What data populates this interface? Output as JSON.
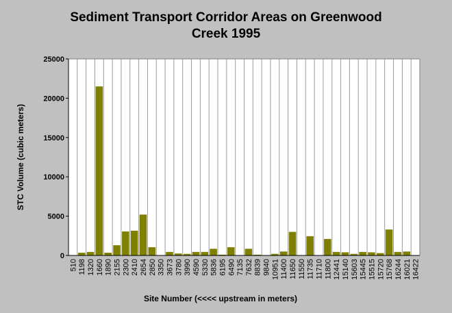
{
  "chart_data": {
    "type": "bar",
    "title_line1": "Sediment Transport Corridor Areas on Greenwood",
    "title_line2": "Creek 1995",
    "xlabel": "Site Number (<<<< upstream in meters)",
    "ylabel": "STC Volume (cubic meters)",
    "ylim": [
      0,
      25000
    ],
    "yticks": [
      0,
      5000,
      10000,
      15000,
      20000,
      25000
    ],
    "grid": "vertical",
    "bar_color": "#808000",
    "categories": [
      "510",
      "1198",
      "1320",
      "1660",
      "1890",
      "2155",
      "2300",
      "2410",
      "2654",
      "2850",
      "3350",
      "3673",
      "3780",
      "3990",
      "4590",
      "5330",
      "5836",
      "6195",
      "6490",
      "7135",
      "7632",
      "8839",
      "9840",
      "10951",
      "11400",
      "11650",
      "11550",
      "11735",
      "11710",
      "11800",
      "12441",
      "15140",
      "15603",
      "15445",
      "15515",
      "15720",
      "15768",
      "16244",
      "16021",
      "16422"
    ],
    "values": [
      0,
      350,
      450,
      21500,
      350,
      1300,
      3050,
      3150,
      5200,
      1050,
      0,
      450,
      250,
      200,
      450,
      450,
      850,
      100,
      1050,
      0,
      850,
      100,
      0,
      200,
      500,
      3000,
      0,
      2450,
      0,
      2100,
      450,
      400,
      200,
      450,
      400,
      300,
      3300,
      450,
      500,
      0
    ]
  }
}
